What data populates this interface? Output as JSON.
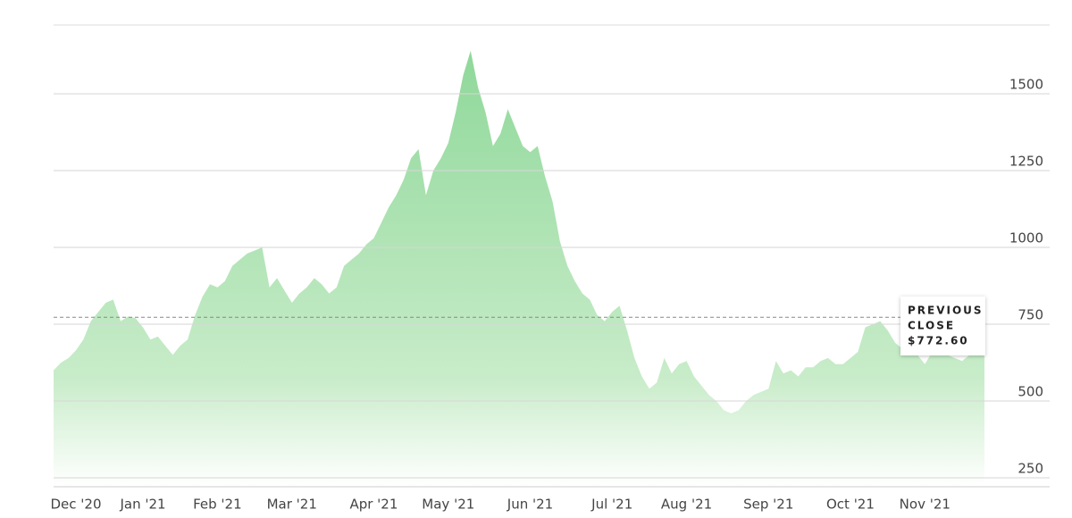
{
  "chart_data": {
    "type": "area",
    "color": "#8fd89a",
    "ylim": [
      221,
      1724
    ],
    "yticks": [
      250,
      500,
      750,
      1000,
      1250,
      1500
    ],
    "grid": true,
    "categories": [
      null,
      null,
      null,
      "Dec '20",
      null,
      null,
      null,
      null,
      null,
      null,
      null,
      null,
      "Jan '21",
      null,
      null,
      null,
      null,
      null,
      null,
      null,
      null,
      null,
      "Feb '21",
      null,
      null,
      null,
      null,
      null,
      null,
      null,
      null,
      null,
      "Mar '21",
      null,
      null,
      null,
      null,
      null,
      null,
      null,
      null,
      null,
      null,
      "Apr '21",
      null,
      null,
      null,
      null,
      null,
      null,
      null,
      null,
      null,
      "May '21",
      null,
      null,
      null,
      null,
      null,
      null,
      null,
      null,
      null,
      null,
      "Jun '21",
      null,
      null,
      null,
      null,
      null,
      null,
      null,
      null,
      null,
      null,
      "Jul '21",
      null,
      null,
      null,
      null,
      null,
      null,
      null,
      null,
      null,
      "Aug '21",
      null,
      null,
      null,
      null,
      null,
      null,
      null,
      null,
      null,
      null,
      "Sep '21",
      null,
      null,
      null,
      null,
      null,
      null,
      null,
      null,
      null,
      null,
      "Oct '21",
      null,
      null,
      null,
      null,
      null,
      null,
      null,
      null,
      null,
      "Nov '21",
      null,
      null,
      null,
      null,
      null,
      null,
      null,
      null
    ],
    "values": [
      600,
      625,
      640,
      665,
      700,
      760,
      790,
      820,
      830,
      760,
      775,
      770,
      740,
      700,
      710,
      680,
      650,
      680,
      700,
      780,
      840,
      880,
      870,
      890,
      940,
      960,
      980,
      990,
      1000,
      870,
      900,
      860,
      820,
      850,
      870,
      900,
      880,
      850,
      870,
      940,
      960,
      980,
      1010,
      1030,
      1080,
      1130,
      1170,
      1220,
      1290,
      1320,
      1170,
      1250,
      1290,
      1340,
      1440,
      1560,
      1640,
      1520,
      1440,
      1330,
      1370,
      1450,
      1390,
      1330,
      1310,
      1330,
      1230,
      1150,
      1020,
      940,
      890,
      850,
      830,
      780,
      760,
      790,
      810,
      730,
      640,
      580,
      540,
      560,
      640,
      590,
      620,
      630,
      580,
      550,
      520,
      500,
      470,
      460,
      470,
      500,
      520,
      530,
      540,
      630,
      590,
      600,
      580,
      610,
      610,
      630,
      640,
      620,
      620,
      640,
      660,
      740,
      750,
      760,
      730,
      690,
      670,
      690,
      650,
      620,
      660,
      670,
      650,
      640,
      630,
      650,
      670,
      700
    ],
    "reference_line": {
      "value": 772.6,
      "title_lines": [
        "PREVIOUS",
        "CLOSE"
      ],
      "label": "$772.60"
    }
  }
}
